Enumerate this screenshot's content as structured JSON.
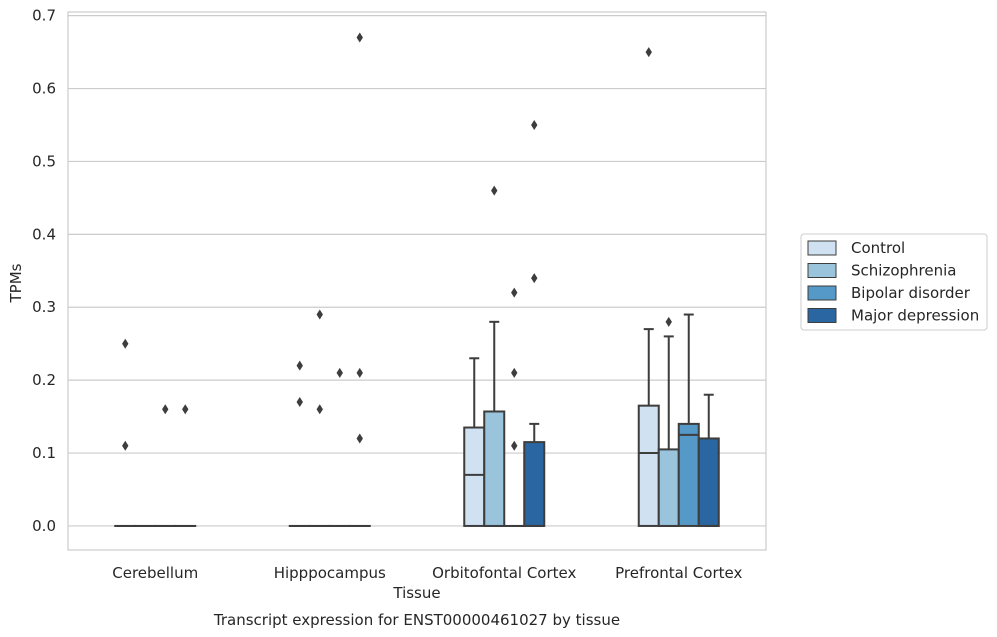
{
  "chart_data": {
    "type": "box",
    "title": "",
    "caption": "Transcript expression for ENST00000461027 by tissue",
    "xlabel": "Tissue",
    "ylabel": "TPMs",
    "ylim": [
      -0.033,
      0.705
    ],
    "yticks": [
      0.0,
      0.1,
      0.2,
      0.3,
      0.4,
      0.5,
      0.6,
      0.7
    ],
    "ytick_labels": [
      "0.0",
      "0.1",
      "0.2",
      "0.3",
      "0.4",
      "0.5",
      "0.6",
      "0.7"
    ],
    "grid": "horizontal",
    "legend_placement": "right",
    "categories": [
      "Cerebellum",
      "Hipppocampus",
      "Orbitofontal Cortex",
      "Prefrontal Cortex"
    ],
    "series": [
      {
        "name": "Control",
        "color": "#d0e1f2",
        "boxes": [
          {
            "q1": 0.0,
            "median": 0.0,
            "q3": 0.0,
            "whislo": 0.0,
            "whishi": 0.0,
            "fliers": [
              0.25,
              0.11
            ]
          },
          {
            "q1": 0.0,
            "median": 0.0,
            "q3": 0.0,
            "whislo": 0.0,
            "whishi": 0.0,
            "fliers": [
              0.22,
              0.17
            ]
          },
          {
            "q1": 0.0,
            "median": 0.07,
            "q3": 0.135,
            "whislo": 0.0,
            "whishi": 0.23,
            "fliers": []
          },
          {
            "q1": 0.0,
            "median": 0.1,
            "q3": 0.165,
            "whislo": 0.0,
            "whishi": 0.27,
            "fliers": [
              0.65
            ]
          }
        ]
      },
      {
        "name": "Schizophrenia",
        "color": "#9ac3dc",
        "boxes": [
          {
            "q1": 0.0,
            "median": 0.0,
            "q3": 0.0,
            "whislo": 0.0,
            "whishi": 0.0,
            "fliers": []
          },
          {
            "q1": 0.0,
            "median": 0.0,
            "q3": 0.0,
            "whislo": 0.0,
            "whishi": 0.0,
            "fliers": [
              0.29,
              0.16
            ]
          },
          {
            "q1": 0.0,
            "median": 0.0,
            "q3": 0.157,
            "whislo": 0.0,
            "whishi": 0.28,
            "fliers": [
              0.46
            ]
          },
          {
            "q1": 0.0,
            "median": 0.0,
            "q3": 0.105,
            "whislo": 0.0,
            "whishi": 0.26,
            "fliers": [
              0.28
            ]
          }
        ]
      },
      {
        "name": "Bipolar disorder",
        "color": "#5499c7",
        "boxes": [
          {
            "q1": 0.0,
            "median": 0.0,
            "q3": 0.0,
            "whislo": 0.0,
            "whishi": 0.0,
            "fliers": [
              0.16
            ]
          },
          {
            "q1": 0.0,
            "median": 0.0,
            "q3": 0.0,
            "whislo": 0.0,
            "whishi": 0.0,
            "fliers": [
              0.21
            ]
          },
          {
            "q1": 0.0,
            "median": 0.0,
            "q3": 0.0,
            "whislo": 0.0,
            "whishi": 0.0,
            "fliers": [
              0.32,
              0.21,
              0.11
            ]
          },
          {
            "q1": 0.0,
            "median": 0.125,
            "q3": 0.14,
            "whislo": 0.0,
            "whishi": 0.29,
            "fliers": []
          }
        ]
      },
      {
        "name": "Major depression",
        "color": "#2a66a1",
        "boxes": [
          {
            "q1": 0.0,
            "median": 0.0,
            "q3": 0.0,
            "whislo": 0.0,
            "whishi": 0.0,
            "fliers": [
              0.16
            ]
          },
          {
            "q1": 0.0,
            "median": 0.0,
            "q3": 0.0,
            "whislo": 0.0,
            "whishi": 0.0,
            "fliers": [
              0.67,
              0.21,
              0.12
            ]
          },
          {
            "q1": 0.0,
            "median": 0.0,
            "q3": 0.115,
            "whislo": 0.0,
            "whishi": 0.14,
            "fliers": [
              0.55,
              0.34
            ]
          },
          {
            "q1": 0.0,
            "median": 0.0,
            "q3": 0.12,
            "whislo": 0.0,
            "whishi": 0.18,
            "fliers": []
          }
        ]
      }
    ]
  }
}
